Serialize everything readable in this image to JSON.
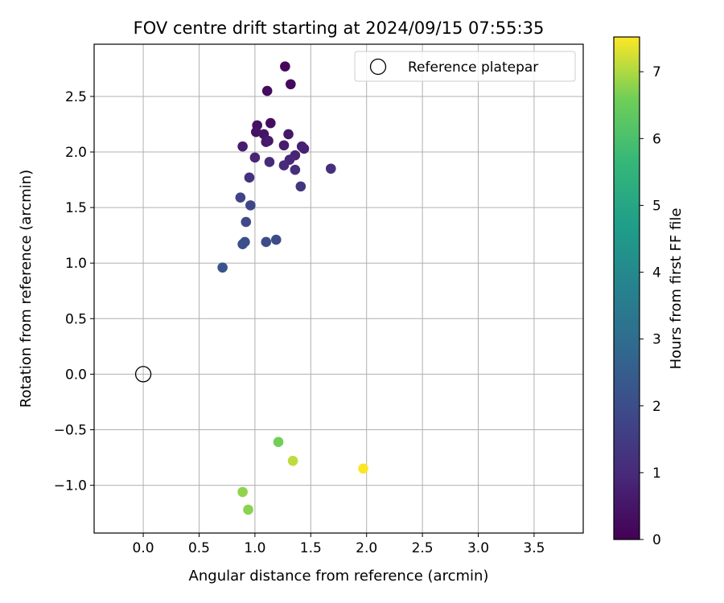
{
  "chart_data": {
    "type": "scatter",
    "title": "FOV centre drift starting at 2024/09/15 07:55:35",
    "xlabel": "Angular distance from reference (arcmin)",
    "ylabel": "Rotation from reference (arcmin)",
    "xlim": [
      -0.44,
      3.94
    ],
    "ylim": [
      -1.43,
      2.97
    ],
    "xticks": [
      0.0,
      0.5,
      1.0,
      1.5,
      2.0,
      2.5,
      3.0,
      3.5
    ],
    "yticks": [
      -1.0,
      -0.5,
      0.0,
      0.5,
      1.0,
      1.5,
      2.0,
      2.5
    ],
    "xtick_labels": [
      "0.0",
      "0.5",
      "1.0",
      "1.5",
      "2.0",
      "2.5",
      "3.0",
      "3.5"
    ],
    "ytick_labels": [
      "−1.0",
      "−0.5",
      "0.0",
      "0.5",
      "1.0",
      "1.5",
      "2.0",
      "2.5"
    ],
    "grid": true,
    "legend": {
      "position": "top-right",
      "entries": [
        "Reference platepar"
      ]
    },
    "reference_point": {
      "x": 0.0,
      "y": 0.0,
      "label": "Reference platepar"
    },
    "colorbar": {
      "label": "Hours from first FF file",
      "range": [
        0,
        7.52
      ],
      "ticks": [
        0,
        1,
        2,
        3,
        4,
        5,
        6,
        7
      ],
      "colormap": "viridis"
    },
    "series": [
      {
        "values": [
          {
            "x": 1.27,
            "y": 2.77,
            "h": 0.15
          },
          {
            "x": 1.32,
            "y": 2.61,
            "h": 0.2
          },
          {
            "x": 1.11,
            "y": 2.55,
            "h": 0.25
          },
          {
            "x": 1.14,
            "y": 2.26,
            "h": 0.3
          },
          {
            "x": 1.02,
            "y": 2.24,
            "h": 0.35
          },
          {
            "x": 1.01,
            "y": 2.18,
            "h": 0.4
          },
          {
            "x": 1.08,
            "y": 2.16,
            "h": 0.45
          },
          {
            "x": 1.3,
            "y": 2.16,
            "h": 0.5
          },
          {
            "x": 1.1,
            "y": 2.09,
            "h": 0.55
          },
          {
            "x": 1.12,
            "y": 2.1,
            "h": 0.6
          },
          {
            "x": 1.26,
            "y": 2.06,
            "h": 0.65
          },
          {
            "x": 0.89,
            "y": 2.05,
            "h": 0.7
          },
          {
            "x": 1.42,
            "y": 2.05,
            "h": 0.75
          },
          {
            "x": 1.44,
            "y": 2.03,
            "h": 0.8
          },
          {
            "x": 1.36,
            "y": 1.97,
            "h": 0.85
          },
          {
            "x": 1.0,
            "y": 1.95,
            "h": 0.9
          },
          {
            "x": 1.31,
            "y": 1.93,
            "h": 0.95
          },
          {
            "x": 1.13,
            "y": 1.91,
            "h": 1.0
          },
          {
            "x": 1.26,
            "y": 1.88,
            "h": 1.05
          },
          {
            "x": 1.36,
            "y": 1.84,
            "h": 1.1
          },
          {
            "x": 1.68,
            "y": 1.85,
            "h": 1.15
          },
          {
            "x": 0.95,
            "y": 1.77,
            "h": 1.2
          },
          {
            "x": 1.41,
            "y": 1.69,
            "h": 1.3
          },
          {
            "x": 0.87,
            "y": 1.59,
            "h": 1.7
          },
          {
            "x": 0.96,
            "y": 1.52,
            "h": 1.8
          },
          {
            "x": 0.92,
            "y": 1.37,
            "h": 1.9
          },
          {
            "x": 1.19,
            "y": 1.21,
            "h": 1.95
          },
          {
            "x": 1.1,
            "y": 1.19,
            "h": 2.0
          },
          {
            "x": 0.91,
            "y": 1.19,
            "h": 2.05
          },
          {
            "x": 0.89,
            "y": 1.17,
            "h": 2.1
          },
          {
            "x": 0.71,
            "y": 0.96,
            "h": 2.2
          },
          {
            "x": 1.21,
            "y": -0.61,
            "h": 6.6
          },
          {
            "x": 1.34,
            "y": -0.78,
            "h": 7.1
          },
          {
            "x": 1.97,
            "y": -0.85,
            "h": 7.5
          },
          {
            "x": 0.89,
            "y": -1.06,
            "h": 6.8
          },
          {
            "x": 0.94,
            "y": -1.22,
            "h": 6.75
          }
        ]
      }
    ]
  }
}
